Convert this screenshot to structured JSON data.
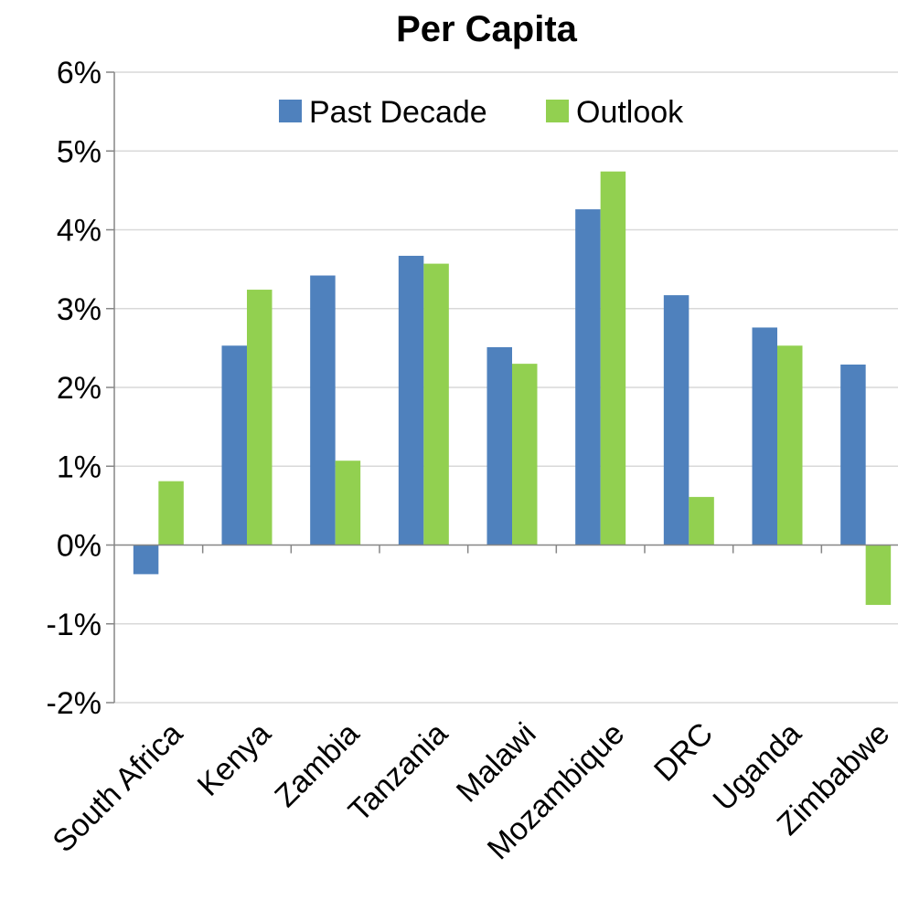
{
  "chart_data": {
    "type": "bar",
    "title": "Per Capita",
    "xlabel": "",
    "ylabel": "",
    "categories": [
      "South Africa",
      "Kenya",
      "Zambia",
      "Tanzania",
      "Malawi",
      "Mozambique",
      "DRC",
      "Uganda",
      "Zimbabwe"
    ],
    "series": [
      {
        "name": "Past Decade",
        "color": "#4F81BD",
        "values": [
          -0.37,
          2.53,
          3.42,
          3.67,
          2.51,
          4.26,
          3.17,
          2.76,
          2.29
        ]
      },
      {
        "name": "Outlook",
        "color": "#92D050",
        "values": [
          0.81,
          3.24,
          1.07,
          3.57,
          2.3,
          4.74,
          0.61,
          2.53,
          -0.76
        ]
      }
    ],
    "ylim": [
      -2,
      6
    ],
    "yticks": [
      "-2%",
      "-1%",
      "0%",
      "1%",
      "2%",
      "3%",
      "4%",
      "5%",
      "6%"
    ],
    "grid": true,
    "legend_position": "top"
  }
}
